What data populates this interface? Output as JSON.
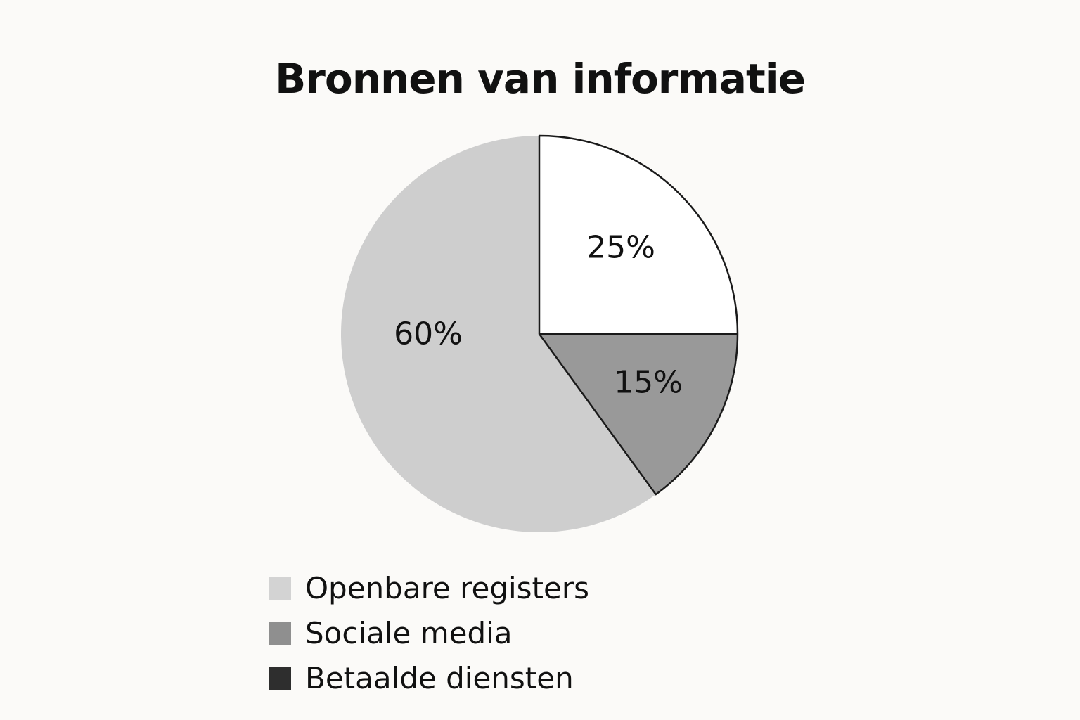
{
  "chart_data": {
    "type": "pie",
    "title": "Bronnen van informatie",
    "slices": [
      {
        "value": 25,
        "label": "25%",
        "color": "#ffffff"
      },
      {
        "value": 15,
        "label": "15%",
        "color": "#999999"
      },
      {
        "value": 60,
        "label": "60%",
        "color": "#cecece"
      }
    ],
    "legend": {
      "placement": "bottom",
      "items": [
        {
          "label": "Openbare registers",
          "color": "#d3d3d3"
        },
        {
          "label": "Sociale media",
          "color": "#8f8f8f"
        },
        {
          "label": "Betaalde diensten",
          "color": "#2e2e2e"
        }
      ]
    },
    "outline_color": "#1a1a1a"
  }
}
